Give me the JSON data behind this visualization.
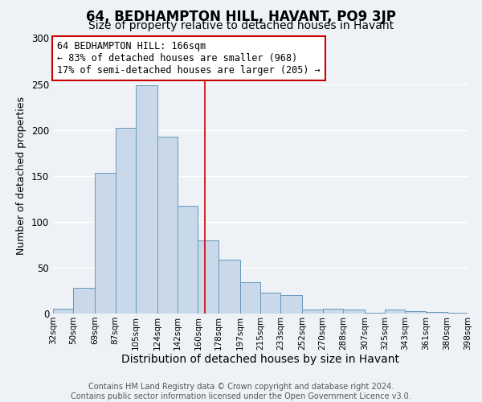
{
  "title": "64, BEDHAMPTON HILL, HAVANT, PO9 3JP",
  "subtitle": "Size of property relative to detached houses in Havant",
  "xlabel": "Distribution of detached houses by size in Havant",
  "ylabel": "Number of detached properties",
  "bar_color": "#c9d9ea",
  "bar_edge_color": "#6699bb",
  "background_color": "#eef2f7",
  "grid_color": "#ffffff",
  "bins": [
    32,
    50,
    69,
    87,
    105,
    124,
    142,
    160,
    178,
    197,
    215,
    233,
    252,
    270,
    288,
    307,
    325,
    343,
    361,
    380,
    398
  ],
  "counts": [
    5,
    28,
    153,
    202,
    249,
    193,
    117,
    80,
    59,
    34,
    23,
    20,
    4,
    5,
    4,
    1,
    4,
    3,
    2,
    1
  ],
  "tick_labels": [
    "32sqm",
    "50sqm",
    "69sqm",
    "87sqm",
    "105sqm",
    "124sqm",
    "142sqm",
    "160sqm",
    "178sqm",
    "197sqm",
    "215sqm",
    "233sqm",
    "252sqm",
    "270sqm",
    "288sqm",
    "307sqm",
    "325sqm",
    "343sqm",
    "361sqm",
    "380sqm",
    "398sqm"
  ],
  "vline_x": 166,
  "vline_color": "#cc0000",
  "annotation_text": "64 BEDHAMPTON HILL: 166sqm\n← 83% of detached houses are smaller (968)\n17% of semi-detached houses are larger (205) →",
  "annotation_box_color": "#ffffff",
  "annotation_box_edge_color": "#cc0000",
  "ylim": [
    0,
    300
  ],
  "yticks": [
    0,
    50,
    100,
    150,
    200,
    250,
    300
  ],
  "footer_text": "Contains HM Land Registry data © Crown copyright and database right 2024.\nContains public sector information licensed under the Open Government Licence v3.0.",
  "title_fontsize": 12,
  "subtitle_fontsize": 10,
  "xlabel_fontsize": 10,
  "ylabel_fontsize": 9,
  "tick_fontsize": 7.5,
  "annotation_fontsize": 8.5,
  "footer_fontsize": 7
}
